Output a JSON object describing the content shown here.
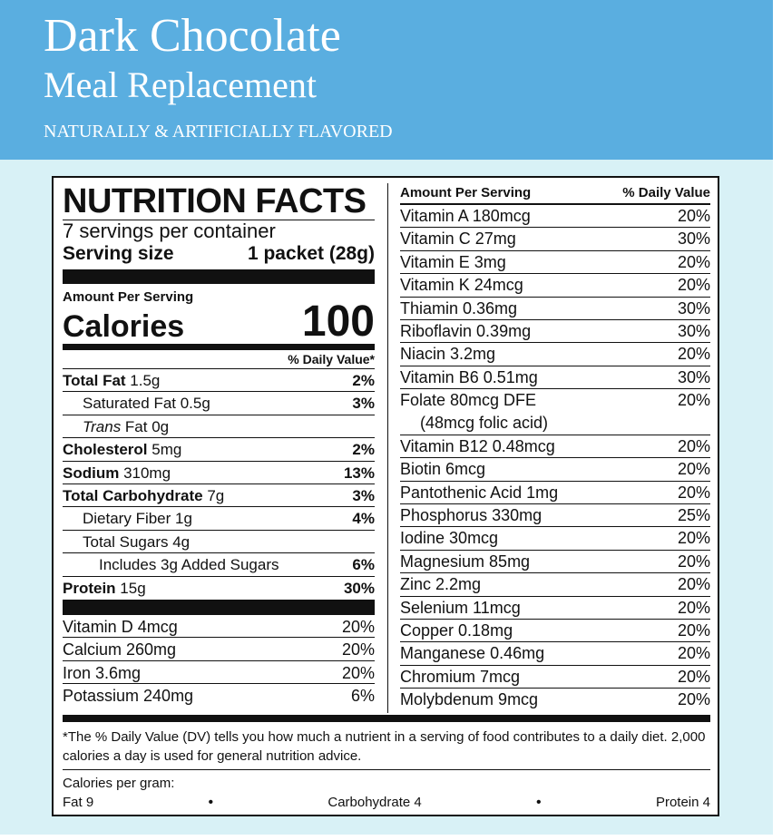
{
  "banner": {
    "title": "Dark Chocolate",
    "subtitle": "Meal Replacement",
    "flavor": "NATURALLY & ARTIFICIALLY FLAVORED",
    "color": "#5aaee0"
  },
  "label": {
    "title": "NUTRITION FACTS",
    "servings": "7 servings per container",
    "serving_size_label": "Serving size",
    "serving_size_value": "1 packet (28g)",
    "amount_per_serving": "Amount Per Serving",
    "calories_label": "Calories",
    "calories_value": "100",
    "dv_header": "% Daily Value*",
    "nutrients": [
      {
        "bold": "Total Fat",
        "text": " 1.5g",
        "pct": "2%"
      },
      {
        "bold": "",
        "text": "Saturated Fat 0.5g",
        "pct": "3%"
      },
      {
        "italic": "Trans",
        "text": " Fat 0g",
        "pct": ""
      },
      {
        "bold": "Cholesterol",
        "text": " 5mg",
        "pct": "2%"
      },
      {
        "bold": "Sodium",
        "text": " 310mg",
        "pct": "13%"
      },
      {
        "bold": "Total Carbohydrate",
        "text": " 7g",
        "pct": "3%"
      },
      {
        "bold": "",
        "text": "Dietary Fiber 1g",
        "pct": "4%"
      },
      {
        "bold": "",
        "text": "Total Sugars 4g",
        "pct": ""
      },
      {
        "bold": "",
        "text": "Includes 3g Added Sugars",
        "pct": "6%"
      },
      {
        "bold": "Protein",
        "text": " 15g",
        "pct": "30%"
      }
    ],
    "vitamins_left": [
      {
        "text": "Vitamin D 4mcg",
        "pct": "20%"
      },
      {
        "text": "Calcium 260mg",
        "pct": "20%"
      },
      {
        "text": "Iron 3.6mg",
        "pct": "20%"
      },
      {
        "text": "Potassium 240mg",
        "pct": "6%"
      }
    ],
    "right_header_left": "Amount Per Serving",
    "right_header_right": "% Daily Value",
    "vitamins_right": [
      {
        "text": "Vitamin A  180mcg",
        "pct": "20%"
      },
      {
        "text": "Vitamin C  27mg",
        "pct": "30%"
      },
      {
        "text": "Vitamin E  3mg",
        "pct": "20%"
      },
      {
        "text": "Vitamin K  24mcg",
        "pct": "20%"
      },
      {
        "text": "Thiamin  0.36mg",
        "pct": "30%"
      },
      {
        "text": "Riboflavin  0.39mg",
        "pct": "30%"
      },
      {
        "text": "Niacin  3.2mg",
        "pct": "20%"
      },
      {
        "text": "Vitamin B6  0.51mg",
        "pct": "30%"
      },
      {
        "text": "Folate  80mcg DFE",
        "text2": "(48mcg folic acid)",
        "pct": "20%"
      },
      {
        "text": "Vitamin B12  0.48mcg",
        "pct": "20%"
      },
      {
        "text": "Biotin  6mcg",
        "pct": "20%"
      },
      {
        "text": "Pantothenic Acid  1mg",
        "pct": "20%"
      },
      {
        "text": "Phosphorus  330mg",
        "pct": "25%"
      },
      {
        "text": "Iodine  30mcg",
        "pct": "20%"
      },
      {
        "text": "Magnesium  85mg",
        "pct": "20%"
      },
      {
        "text": "Zinc  2.2mg",
        "pct": "20%"
      },
      {
        "text": "Selenium  11mcg",
        "pct": "20%"
      },
      {
        "text": "Copper  0.18mg",
        "pct": "20%"
      },
      {
        "text": "Manganese  0.46mg",
        "pct": "20%"
      },
      {
        "text": "Chromium  7mcg",
        "pct": "20%"
      },
      {
        "text": "Molybdenum  9mcg",
        "pct": "20%"
      }
    ],
    "footnote": "*The % Daily Value (DV) tells you how much a nutrient in a serving of food contributes to a daily diet. 2,000 calories a day is used for general nutrition advice.",
    "calories_per_gram": "Calories per gram:",
    "fat": "Fat 9",
    "carbohydrate": "Carbohydrate 4",
    "protein": "Protein 4",
    "bullet": "•"
  }
}
